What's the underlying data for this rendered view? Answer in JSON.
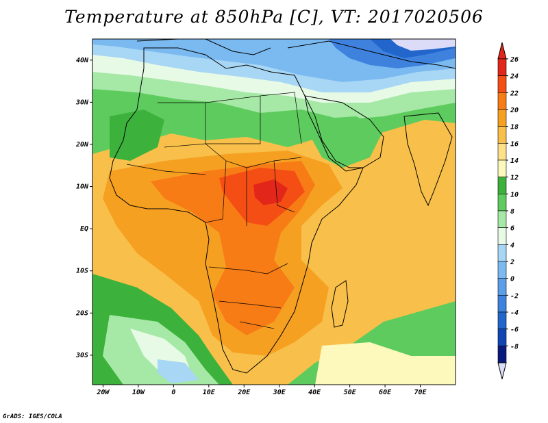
{
  "title": "Temperature at 850hPa [C], VT: 2017020506",
  "credit": "GrADS: IGES/COLA",
  "map": {
    "projection": "lat-lon",
    "lon_range": [
      -23,
      80
    ],
    "lat_range": [
      -37,
      45
    ],
    "lat_labels": [
      {
        "lat": 40,
        "label": "40N"
      },
      {
        "lat": 30,
        "label": "30N"
      },
      {
        "lat": 20,
        "label": "20N"
      },
      {
        "lat": 10,
        "label": "10N"
      },
      {
        "lat": 0,
        "label": "EQ"
      },
      {
        "lat": -10,
        "label": "10S"
      },
      {
        "lat": -20,
        "label": "20S"
      },
      {
        "lat": -30,
        "label": "30S"
      }
    ],
    "lon_labels": [
      {
        "lon": -20,
        "label": "20W"
      },
      {
        "lon": -10,
        "label": "10W"
      },
      {
        "lon": 0,
        "label": "0"
      },
      {
        "lon": 10,
        "label": "10E"
      },
      {
        "lon": 20,
        "label": "20E"
      },
      {
        "lon": 30,
        "label": "30E"
      },
      {
        "lon": 40,
        "label": "40E"
      },
      {
        "lon": 50,
        "label": "50E"
      },
      {
        "lon": 60,
        "label": "60E"
      },
      {
        "lon": 70,
        "label": "70E"
      }
    ]
  },
  "colorbar": {
    "labels": [
      "26",
      "24",
      "22",
      "20",
      "18",
      "16",
      "14",
      "12",
      "10",
      "8",
      "6",
      "4",
      "2",
      "0",
      "-2",
      "-4",
      "-6",
      "-8"
    ],
    "colors": [
      "#e3261a",
      "#f54e14",
      "#f77c16",
      "#f6a022",
      "#f8c04a",
      "#fce08a",
      "#fdf8bc",
      "#3cb23c",
      "#5ecb5e",
      "#a6e8a6",
      "#e6fae6",
      "#a8d6f5",
      "#7bbaf0",
      "#5c9ee8",
      "#3e82de",
      "#2266cc",
      "#0f46b4",
      "#0a1a7a"
    ],
    "over_color": "#e3261a",
    "under_color": "#dcdcf8"
  }
}
